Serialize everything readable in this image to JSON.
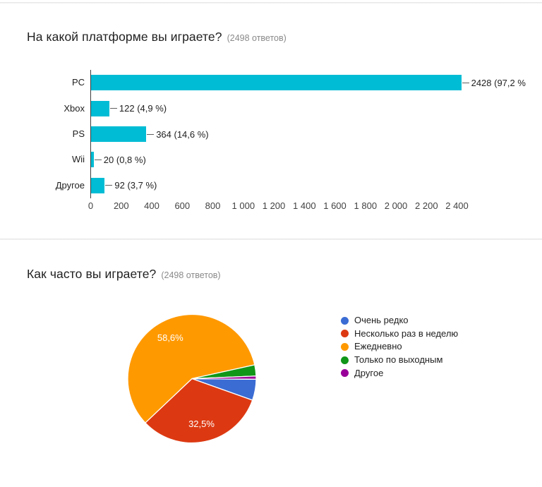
{
  "page": {
    "background": "#ffffff",
    "divider_color": "#e0e0e0"
  },
  "chart_data": [
    {
      "type": "bar",
      "orientation": "horizontal",
      "title": "На какой платформе вы играете?",
      "responses_note": "(2498 ответов)",
      "categories": [
        "PC",
        "Xbox",
        "PS",
        "Wii",
        "Другое"
      ],
      "values": [
        2428,
        122,
        364,
        20,
        92
      ],
      "value_labels": [
        "2428 (97,2 %",
        "122 (4,9 %)",
        "364 (14,6 %)",
        "20 (0,8 %)",
        "92 (3,7 %)"
      ],
      "bar_color": "#00bcd4",
      "xlim": [
        0,
        2400
      ],
      "x_tick_values": [
        0,
        200,
        400,
        600,
        800,
        1000,
        1200,
        1400,
        1600,
        1800,
        2000,
        2200,
        2400
      ],
      "x_tick_labels": [
        "0",
        "200",
        "400",
        "600",
        "800",
        "1 000",
        "1 200",
        "1 400",
        "1 600",
        "1 800",
        "2 000",
        "2 200",
        "2 400"
      ],
      "grid": false,
      "legend": "none"
    },
    {
      "type": "pie",
      "title": "Как часто вы играете?",
      "responses_note": "(2498 ответов)",
      "legend_position": "right",
      "start_angle_from_top_cw_deg": 90.5,
      "slice_border_color": "#ffffff",
      "slices": [
        {
          "label": "Очень редко",
          "pct": 5.3,
          "color": "#3b6cd4",
          "data_label": ""
        },
        {
          "label": "Несколько раз в неделю",
          "pct": 32.5,
          "color": "#dc3912",
          "data_label": "32,5%"
        },
        {
          "label": "Ежедневно",
          "pct": 58.6,
          "color": "#ff9900",
          "data_label": "58,6%"
        },
        {
          "label": "Только по выходным",
          "pct": 2.8,
          "color": "#109618",
          "data_label": ""
        },
        {
          "label": "Другое",
          "pct": 0.8,
          "color": "#990099",
          "data_label": ""
        }
      ]
    }
  ]
}
